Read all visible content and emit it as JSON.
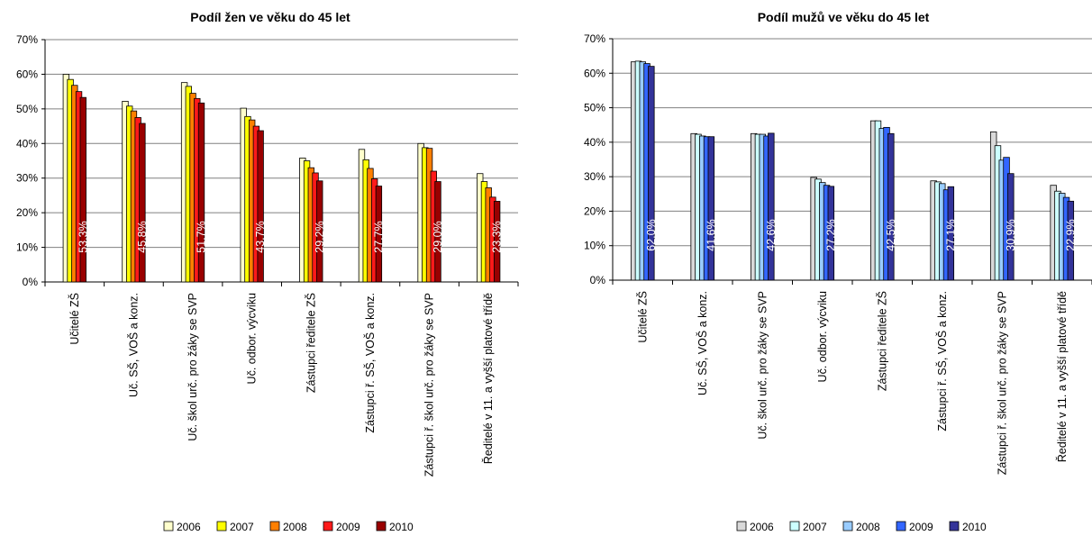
{
  "chart_data": [
    {
      "type": "bar",
      "title": "Podíl žen ve věku do 45 let",
      "xlabel": "",
      "ylabel": "",
      "ylim": [
        0,
        70
      ],
      "yticks": [
        "0%",
        "10%",
        "20%",
        "30%",
        "40%",
        "50%",
        "60%",
        "70%"
      ],
      "grid": true,
      "legend_position": "bottom",
      "categories": [
        "Učitelé ZŠ",
        "Uč. SŠ, VOŠ a konz.",
        "Uč. škol urč. pro žáky se SVP",
        "Uč. odbor. výcviku",
        "Zástupci ředitele ZŠ",
        "Zástupci ř. SŠ, VOŠ a konz.",
        "Zástupci ř. škol urč. pro žáky se SVP",
        "Ředitelé v 11. a vyšší platové třídě"
      ],
      "series": [
        {
          "name": "2006",
          "color": "#ffffcc",
          "values": [
            60.0,
            52.2,
            57.6,
            50.2,
            35.8,
            38.3,
            40.0,
            31.3
          ]
        },
        {
          "name": "2007",
          "color": "#ffff00",
          "values": [
            58.5,
            50.8,
            56.5,
            47.8,
            35.0,
            35.3,
            38.8,
            29.0
          ]
        },
        {
          "name": "2008",
          "color": "#ff7f00",
          "values": [
            56.8,
            49.4,
            54.5,
            46.8,
            33.0,
            32.8,
            38.6,
            27.2
          ]
        },
        {
          "name": "2009",
          "color": "#ff1a1a",
          "values": [
            55.0,
            47.5,
            53.0,
            45.0,
            31.5,
            29.8,
            32.0,
            24.5
          ]
        },
        {
          "name": "2010",
          "color": "#990000",
          "values": [
            53.3,
            45.8,
            51.7,
            43.7,
            29.2,
            27.7,
            29.0,
            23.3
          ]
        }
      ],
      "data_labels": [
        "53,3%",
        "45,8%",
        "51,7%",
        "43,7%",
        "29,2%",
        "27,7%",
        "29,0%",
        "23,3%"
      ]
    },
    {
      "type": "bar",
      "title": "Podíl mužů ve věku do 45 let",
      "xlabel": "",
      "ylabel": "",
      "ylim": [
        0,
        70
      ],
      "yticks": [
        "0%",
        "10%",
        "20%",
        "30%",
        "40%",
        "50%",
        "60%",
        "70%"
      ],
      "grid": true,
      "legend_position": "bottom",
      "categories": [
        "Učitelé ZŠ",
        "Uč. SŠ, VOŠ a konz.",
        "Uč. škol urč. pro žáky se SVP",
        "Uč. odbor. výcviku",
        "Zástupci ředitele ZŠ",
        "Zástupci ř. SŠ, VOŠ a konz.",
        "Zástupci ř. škol urč. pro žáky se SVP",
        "Ředitelé v 11. a vyšší platové třídě"
      ],
      "series": [
        {
          "name": "2006",
          "color": "#d9d9d9",
          "values": [
            63.3,
            42.5,
            42.5,
            29.8,
            46.2,
            28.8,
            43.0,
            27.5
          ]
        },
        {
          "name": "2007",
          "color": "#ccffff",
          "values": [
            63.5,
            42.3,
            42.3,
            29.3,
            46.2,
            28.5,
            39.0,
            25.8
          ]
        },
        {
          "name": "2008",
          "color": "#99ccff",
          "values": [
            63.3,
            41.8,
            42.3,
            28.3,
            44.0,
            28.0,
            34.8,
            25.2
          ]
        },
        {
          "name": "2009",
          "color": "#3366ff",
          "values": [
            62.8,
            41.6,
            41.8,
            27.5,
            44.3,
            26.2,
            35.6,
            24.0
          ]
        },
        {
          "name": "2010",
          "color": "#333399",
          "values": [
            62.0,
            41.6,
            42.6,
            27.2,
            42.5,
            27.1,
            30.9,
            22.9
          ]
        }
      ],
      "data_labels": [
        "62,0%",
        "41,6%",
        "42,6%",
        "27,2%",
        "42,5%",
        "27,1%",
        "30,9%",
        "22,9%"
      ]
    }
  ]
}
